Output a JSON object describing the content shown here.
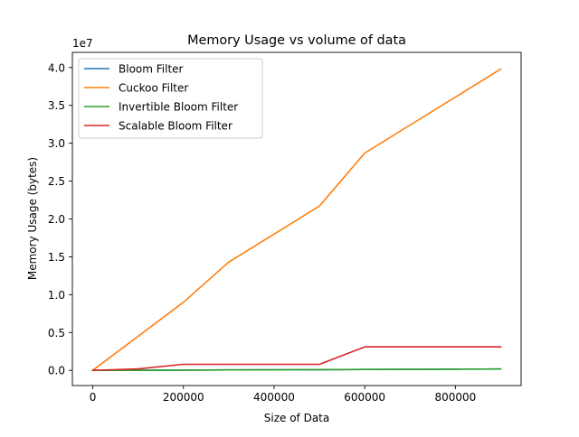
{
  "chart_data": {
    "type": "line",
    "title": "Memory Usage vs volume of data",
    "xlabel": "Size of Data",
    "ylabel": "Memory Usage (bytes)",
    "y_offset_text": "1e7",
    "x_ticks": [
      {
        "value": 0,
        "label": "0"
      },
      {
        "value": 200000,
        "label": "200000"
      },
      {
        "value": 400000,
        "label": "400000"
      },
      {
        "value": 600000,
        "label": "600000"
      },
      {
        "value": 800000,
        "label": "800000"
      }
    ],
    "y_ticks": [
      {
        "value": 0.0,
        "label": "0.0"
      },
      {
        "value": 0.5,
        "label": "0.5"
      },
      {
        "value": 1.0,
        "label": "1.0"
      },
      {
        "value": 1.5,
        "label": "1.5"
      },
      {
        "value": 2.0,
        "label": "2.0"
      },
      {
        "value": 2.5,
        "label": "2.5"
      },
      {
        "value": 3.0,
        "label": "3.0"
      },
      {
        "value": 3.5,
        "label": "3.5"
      },
      {
        "value": 4.0,
        "label": "4.0"
      }
    ],
    "xlim": [
      -45000,
      945000
    ],
    "ylim": [
      -0.2,
      4.2
    ],
    "y_unit_multiplier": 10000000,
    "grid": false,
    "legend_position": "top-left",
    "x": [
      0,
      100000,
      200000,
      300000,
      400000,
      500000,
      600000,
      700000,
      800000,
      900000
    ],
    "series": [
      {
        "name": "Bloom Filter",
        "color": "#1f77b4",
        "values": [
          0.0,
          0.002,
          0.004,
          0.006,
          0.008,
          0.01,
          0.012,
          0.014,
          0.016,
          0.018
        ]
      },
      {
        "name": "Cuckoo Filter",
        "color": "#ff7f0e",
        "values": [
          0.0,
          0.45,
          0.9,
          1.43,
          1.8,
          2.17,
          2.87,
          3.24,
          3.61,
          3.98
        ]
      },
      {
        "name": "Invertible Bloom Filter",
        "color": "#2ca02c",
        "values": [
          0.0,
          0.002,
          0.004,
          0.006,
          0.008,
          0.01,
          0.012,
          0.014,
          0.016,
          0.018
        ]
      },
      {
        "name": "Scalable Bloom Filter",
        "color": "#d62728",
        "values": [
          0.0,
          0.02,
          0.08,
          0.08,
          0.08,
          0.08,
          0.31,
          0.31,
          0.31,
          0.31
        ]
      }
    ]
  }
}
